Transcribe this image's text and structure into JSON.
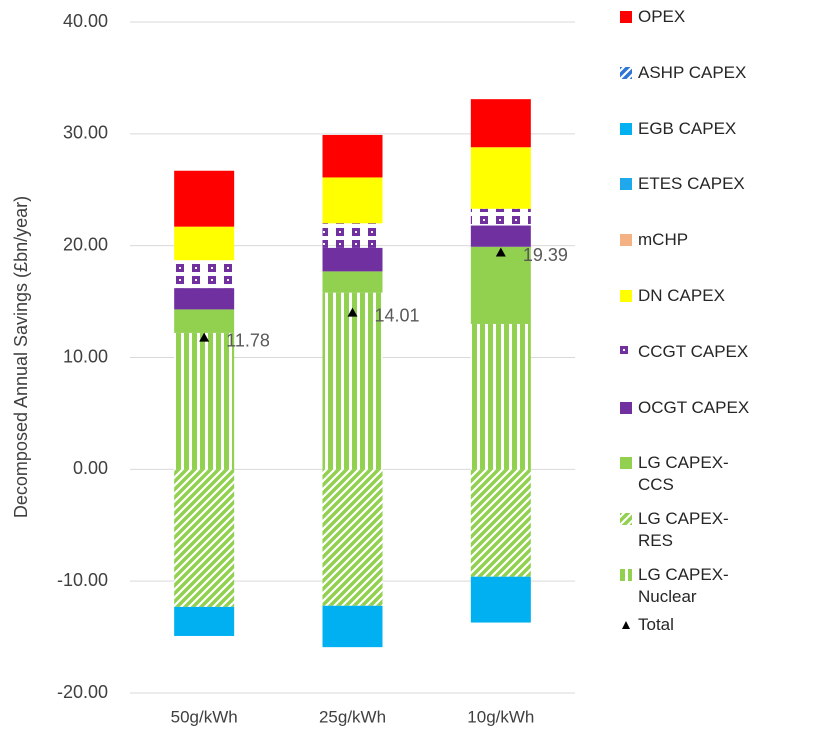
{
  "chart_data": {
    "type": "stacked_bar",
    "y_label": "Decomposed Annual Savings (£bn/year)",
    "categories": [
      "50g/kWh",
      "25g/kWh",
      "10g/kWh"
    ],
    "ylim": [
      -20,
      40
    ],
    "yticks": [
      {
        "value": -20,
        "label": "-20.00"
      },
      {
        "value": -10,
        "label": "-10.00"
      },
      {
        "value": 0,
        "label": "0.00"
      },
      {
        "value": 10,
        "label": "10.00"
      },
      {
        "value": 20,
        "label": "20.00"
      },
      {
        "value": 30,
        "label": "30.00"
      },
      {
        "value": 40,
        "label": "40.00"
      }
    ],
    "grid": true,
    "legend": "right",
    "series": [
      {
        "name": "OPEX",
        "color": "#ff0000",
        "values": [
          5.0,
          3.8,
          4.3
        ]
      },
      {
        "name": "ASHP CAPEX",
        "color": "#2e75d6",
        "pattern": "diagonal",
        "values": [
          0,
          0,
          0
        ]
      },
      {
        "name": "EGB CAPEX",
        "color": "#00b0f0",
        "values": [
          -2.6,
          -3.7,
          -4.1
        ]
      },
      {
        "name": "ETES CAPEX",
        "color": "#1fa8ec",
        "values": [
          0,
          0,
          0
        ]
      },
      {
        "name": "mCHP",
        "color": "#f4b183",
        "values": [
          0,
          0,
          0
        ]
      },
      {
        "name": "DN CAPEX",
        "color": "#ffff00",
        "values": [
          3.0,
          4.1,
          5.5
        ]
      },
      {
        "name": "CCGT CAPEX",
        "color": "#7030a0",
        "pattern": "dots",
        "values": [
          2.5,
          2.2,
          1.5
        ]
      },
      {
        "name": "OCGT CAPEX",
        "color": "#7030a0",
        "values": [
          1.9,
          2.1,
          1.9
        ]
      },
      {
        "name": "LG CAPEX-CCS",
        "color": "#92d050",
        "values": [
          2.1,
          1.9,
          6.9
        ]
      },
      {
        "name": "LG CAPEX-RES",
        "color": "#92d050",
        "pattern": "diagonal",
        "values": [
          -12.3,
          -12.2,
          -9.6
        ]
      },
      {
        "name": "LG CAPEX-Nuclear",
        "color": "#92d050",
        "pattern": "vertical",
        "values": [
          12.2,
          15.8,
          13.0
        ]
      }
    ],
    "total": {
      "name": "Total",
      "color": "#000000",
      "values": [
        11.78,
        14.01,
        19.39
      ]
    }
  }
}
